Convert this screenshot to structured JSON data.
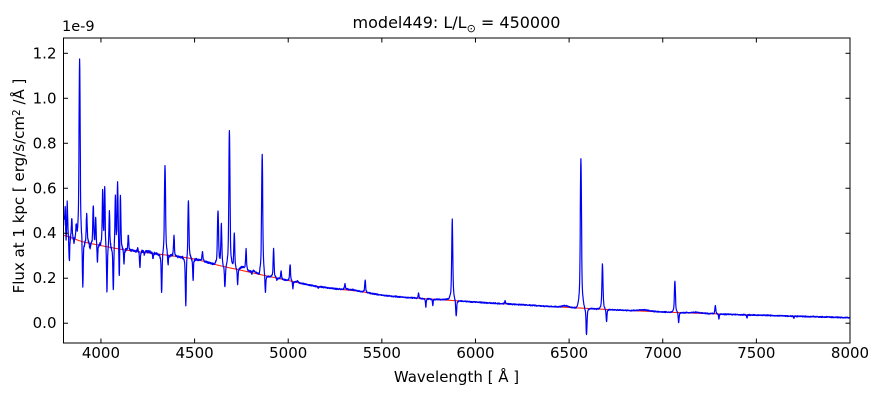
{
  "figure": {
    "title": {
      "prefix": "model449: L/L",
      "sub": "⊙",
      "suffix": " = 450000"
    },
    "xlabel": {
      "full": "Wavelength [ Å ]"
    },
    "ylabel": {
      "prefix": "Flux at 1 kpc [ erg/s/cm",
      "sup": "2",
      "suffix": " /Å ]"
    },
    "offset_text": "1e-9"
  },
  "chart_data": {
    "type": "line",
    "title": "model449: L/L⊙ = 450000",
    "xlabel": "Wavelength [ Å ]",
    "ylabel": "Flux at 1 kpc [ erg/s/cm² /Å ]",
    "y_offset_factor": "1e-9",
    "flux_units": "1e-9 erg/s/cm²/Å",
    "xlim": [
      3800,
      8000
    ],
    "ylim": [
      -0.088,
      1.268
    ],
    "xticks": [
      4000,
      4500,
      5000,
      5500,
      6000,
      6500,
      7000,
      7500,
      8000
    ],
    "yticks": [
      0.0,
      0.2,
      0.4,
      0.6,
      0.8,
      1.0,
      1.2
    ],
    "grid": false,
    "legend": null,
    "series": [
      {
        "name": "continuum fit",
        "color": "#ff2200",
        "role": "continuum"
      },
      {
        "name": "model spectrum",
        "color": "#0000f5",
        "role": "spectrum"
      }
    ],
    "continuum_points": [
      [
        3800,
        0.39
      ],
      [
        3900,
        0.363
      ],
      [
        4000,
        0.345
      ],
      [
        4125,
        0.326
      ],
      [
        4250,
        0.313
      ],
      [
        4375,
        0.3
      ],
      [
        4500,
        0.285
      ],
      [
        4625,
        0.258
      ],
      [
        4750,
        0.235
      ],
      [
        4875,
        0.212
      ],
      [
        5000,
        0.19
      ],
      [
        5125,
        0.168
      ],
      [
        5250,
        0.153
      ],
      [
        5375,
        0.142
      ],
      [
        5500,
        0.125
      ],
      [
        5625,
        0.115
      ],
      [
        5750,
        0.108
      ],
      [
        5875,
        0.101
      ],
      [
        6000,
        0.094
      ],
      [
        6125,
        0.0875
      ],
      [
        6250,
        0.082
      ],
      [
        6375,
        0.0755
      ],
      [
        6500,
        0.07
      ],
      [
        6625,
        0.0645
      ],
      [
        6750,
        0.059
      ],
      [
        6875,
        0.0545
      ],
      [
        7000,
        0.05
      ],
      [
        7125,
        0.046
      ],
      [
        7250,
        0.0425
      ],
      [
        7375,
        0.039
      ],
      [
        7500,
        0.036
      ],
      [
        7625,
        0.033
      ],
      [
        7750,
        0.0302
      ],
      [
        7875,
        0.0274
      ],
      [
        8000,
        0.0245
      ]
    ],
    "spectral_lines": [
      [
        3803,
        0.46,
        2
      ],
      [
        3809,
        0.5,
        2
      ],
      [
        3814,
        0.34,
        1.8
      ],
      [
        3820,
        0.54,
        2.2
      ],
      [
        3831,
        0.27,
        1.8
      ],
      [
        3844,
        0.47,
        2.2
      ],
      [
        3856,
        0.36,
        1.8
      ],
      [
        3868,
        0.43,
        2
      ],
      [
        3886,
        1.17,
        2.8
      ],
      [
        3903,
        0.15,
        2.2
      ],
      [
        3924,
        0.49,
        2.2
      ],
      [
        3942,
        0.33,
        1.8
      ],
      [
        3959,
        0.53,
        2.2
      ],
      [
        3972,
        0.47,
        2
      ],
      [
        3981,
        0.27,
        1.8
      ],
      [
        4009,
        0.58,
        2.2
      ],
      [
        4020,
        0.6,
        2.2
      ],
      [
        4032,
        0.13,
        2
      ],
      [
        4045,
        0.5,
        2
      ],
      [
        4066,
        0.14,
        2
      ],
      [
        4077,
        0.56,
        2.2
      ],
      [
        4089,
        0.62,
        2.4
      ],
      [
        4098,
        0.16,
        1.8
      ],
      [
        4104,
        0.58,
        2.2
      ],
      [
        4123,
        0.27,
        1.8
      ],
      [
        4146,
        0.39,
        2.2
      ],
      [
        4196,
        0.33,
        2
      ],
      [
        4208,
        0.24,
        1.8
      ],
      [
        4232,
        0.3,
        2
      ],
      [
        4278,
        0.285,
        1.8
      ],
      [
        4324,
        0.13,
        2.2
      ],
      [
        4342,
        0.7,
        2.8
      ],
      [
        4358,
        0.25,
        1.8
      ],
      [
        4390,
        0.39,
        2.2
      ],
      [
        4453,
        0.075,
        2.2
      ],
      [
        4467,
        0.55,
        2.4
      ],
      [
        4492,
        0.19,
        1.8
      ],
      [
        4542,
        0.32,
        2.2
      ],
      [
        4625,
        0.5,
        2.8
      ],
      [
        4643,
        0.44,
        2.4
      ],
      [
        4662,
        0.16,
        2.2
      ],
      [
        4686,
        0.86,
        2.8
      ],
      [
        4712,
        0.4,
        2.4
      ],
      [
        4730,
        0.17,
        2
      ],
      [
        4775,
        0.32,
        2
      ],
      [
        4806,
        0.21,
        1.8
      ],
      [
        4845,
        0.205,
        1.8
      ],
      [
        4861,
        0.75,
        2.8
      ],
      [
        4878,
        0.13,
        2.2
      ],
      [
        4922,
        0.33,
        2.2
      ],
      [
        4940,
        0.19,
        1.6
      ],
      [
        4962,
        0.23,
        2
      ],
      [
        5010,
        0.26,
        2.2
      ],
      [
        5025,
        0.155,
        1.6
      ],
      [
        5050,
        0.19,
        2
      ],
      [
        5160,
        0.156,
        2
      ],
      [
        5303,
        0.175,
        2
      ],
      [
        5411,
        0.19,
        2.2
      ],
      [
        5696,
        0.135,
        2
      ],
      [
        5735,
        0.07,
        1.6
      ],
      [
        5772,
        0.078,
        1.6
      ],
      [
        5876,
        0.46,
        2.6
      ],
      [
        5897,
        0.03,
        2.2
      ],
      [
        6158,
        0.1,
        2
      ],
      [
        6563,
        0.73,
        3
      ],
      [
        6593,
        -0.05,
        2.4
      ],
      [
        6678,
        0.265,
        2.6
      ],
      [
        6700,
        0.005,
        2
      ],
      [
        7065,
        0.185,
        2.6
      ],
      [
        7085,
        0.0,
        2
      ],
      [
        7281,
        0.08,
        2.2
      ],
      [
        7300,
        0.02,
        1.6
      ],
      [
        7450,
        0.022,
        1.4
      ],
      [
        7700,
        0.02,
        1.4
      ]
    ],
    "broad_bumps": [
      [
        4240,
        0.006,
        30
      ],
      [
        4760,
        0.016,
        16
      ],
      [
        4815,
        0.01,
        12
      ],
      [
        5330,
        0.004,
        30
      ],
      [
        5860,
        0.005,
        22
      ],
      [
        6480,
        0.007,
        16
      ],
      [
        6900,
        0.006,
        28
      ],
      [
        7180,
        0.004,
        25
      ]
    ],
    "noise": {
      "amp_base": 0.003,
      "amp_blue_end": 0.012,
      "decay_scale": 450
    }
  }
}
